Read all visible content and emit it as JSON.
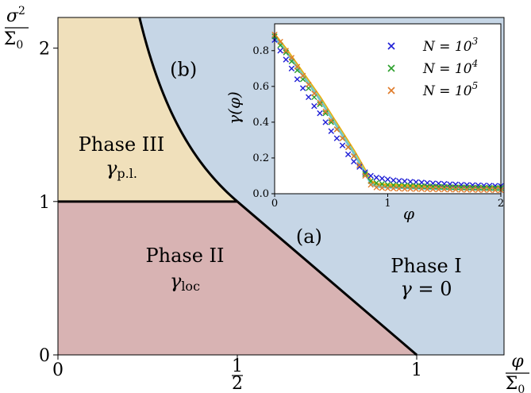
{
  "chart_data": [
    {
      "type": "area",
      "xlabel": {
        "numerator": "φ",
        "denominator": "Σ",
        "denominator_sub": "0"
      },
      "ylabel": {
        "numerator": "σ",
        "numerator_sup": "2",
        "denominator": "Σ",
        "denominator_sub": "0"
      },
      "xlim": [
        0,
        1.0
      ],
      "ylim": [
        0,
        2.2
      ],
      "xticks": [
        {
          "value": 0,
          "label": "0"
        },
        {
          "value": 0.5,
          "numerator": "1",
          "denominator": "2"
        },
        {
          "value": 1,
          "label": "1"
        }
      ],
      "yticks": [
        {
          "value": 0,
          "label": "0"
        },
        {
          "value": 1,
          "label": "1"
        },
        {
          "value": 2,
          "label": "2"
        }
      ],
      "x_max": 1.25,
      "regions": [
        {
          "name": "Phase I",
          "formula_main": "γ",
          "formula_rest": " = 0",
          "color": "#c6d6e6"
        },
        {
          "name": "Phase II",
          "formula_main": "γ",
          "formula_sub": "loc",
          "color": "#d8b3b3"
        },
        {
          "name": "Phase III",
          "formula_main": "γ",
          "formula_sub": "p.l.",
          "color": "#f0e0bb"
        }
      ],
      "boundaries": [
        {
          "id": "phase-ii-iii",
          "points": [
            [
              0,
              1
            ],
            [
              0.5,
              1
            ]
          ]
        },
        {
          "id": "phase-i-ii",
          "points": [
            [
              0.5,
              1
            ],
            [
              1,
              0
            ]
          ]
        },
        {
          "id": "phase-iii-i",
          "formula": "y = 1/(2x)",
          "x_range": [
            0.227,
            0.5
          ]
        }
      ],
      "annotations": [
        {
          "label": "(a)",
          "x": 0.7,
          "y": 0.73
        },
        {
          "label": "(b)",
          "x": 0.35,
          "y": 1.82
        }
      ]
    },
    {
      "type": "line",
      "xlabel": "φ",
      "ylabel": "γ(φ)",
      "xlim": [
        0,
        2
      ],
      "ylim": [
        0,
        0.95
      ],
      "xticks": [
        0,
        1,
        2
      ],
      "yticks": [
        0.0,
        0.2,
        0.4,
        0.6,
        0.8
      ],
      "ytick_labels": [
        "0.0",
        "0.2",
        "0.4",
        "0.6",
        "0.8"
      ],
      "legend_position": "top-right",
      "theory_curve": {
        "colors": [
          "#f2a900",
          "#8fd3a0",
          "#6ec0cf"
        ],
        "x": [
          0,
          0.1,
          0.2,
          0.3,
          0.4,
          0.5,
          0.6,
          0.7,
          0.8,
          0.85,
          0.9,
          1.0,
          1.2,
          1.4,
          1.6,
          1.8,
          2.0
        ],
        "y": [
          0.88,
          0.8,
          0.71,
          0.62,
          0.53,
          0.43,
          0.33,
          0.23,
          0.12,
          0.06,
          0.045,
          0.04,
          0.036,
          0.033,
          0.031,
          0.029,
          0.027
        ]
      },
      "series": [
        {
          "name_base": "N = 10",
          "name_exp": "3",
          "color": "#1f1fd6",
          "x": [
            0.0,
            0.05,
            0.1,
            0.15,
            0.2,
            0.25,
            0.3,
            0.35,
            0.4,
            0.45,
            0.5,
            0.55,
            0.6,
            0.65,
            0.7,
            0.75,
            0.8,
            0.85,
            0.9,
            0.95,
            1.0,
            1.05,
            1.1,
            1.15,
            1.2,
            1.25,
            1.3,
            1.35,
            1.4,
            1.45,
            1.5,
            1.55,
            1.6,
            1.65,
            1.7,
            1.75,
            1.8,
            1.85,
            1.9,
            1.95,
            2.0
          ],
          "y": [
            0.86,
            0.8,
            0.75,
            0.7,
            0.64,
            0.59,
            0.54,
            0.49,
            0.45,
            0.4,
            0.35,
            0.31,
            0.27,
            0.22,
            0.18,
            0.15,
            0.12,
            0.1,
            0.09,
            0.085,
            0.08,
            0.075,
            0.072,
            0.07,
            0.067,
            0.065,
            0.063,
            0.06,
            0.058,
            0.057,
            0.055,
            0.053,
            0.052,
            0.05,
            0.049,
            0.048,
            0.047,
            0.046,
            0.045,
            0.044,
            0.043
          ]
        },
        {
          "name_base": "N = 10",
          "name_exp": "4",
          "color": "#2ca02c",
          "x": [
            0.0,
            0.05,
            0.1,
            0.15,
            0.2,
            0.25,
            0.3,
            0.35,
            0.4,
            0.45,
            0.5,
            0.55,
            0.6,
            0.65,
            0.7,
            0.75,
            0.8,
            0.85,
            0.9,
            0.95,
            1.0,
            1.05,
            1.1,
            1.15,
            1.2,
            1.25,
            1.3,
            1.35,
            1.4,
            1.45,
            1.5,
            1.55,
            1.6,
            1.65,
            1.7,
            1.75,
            1.8,
            1.85,
            1.9,
            1.95,
            2.0
          ],
          "y": [
            0.88,
            0.83,
            0.79,
            0.74,
            0.69,
            0.64,
            0.59,
            0.54,
            0.5,
            0.45,
            0.4,
            0.36,
            0.31,
            0.26,
            0.21,
            0.16,
            0.11,
            0.07,
            0.06,
            0.055,
            0.05,
            0.048,
            0.046,
            0.045,
            0.044,
            0.043,
            0.042,
            0.041,
            0.04,
            0.039,
            0.038,
            0.037,
            0.036,
            0.036,
            0.035,
            0.034,
            0.034,
            0.033,
            0.033,
            0.032,
            0.032
          ]
        },
        {
          "name_base": "N = 10",
          "name_exp": "5",
          "color": "#e07b2a",
          "x": [
            0.0,
            0.05,
            0.1,
            0.15,
            0.2,
            0.25,
            0.3,
            0.35,
            0.4,
            0.45,
            0.5,
            0.55,
            0.6,
            0.65,
            0.7,
            0.75,
            0.8,
            0.85,
            0.9,
            0.95,
            1.0,
            1.05,
            1.1,
            1.15,
            1.2,
            1.25,
            1.3,
            1.35,
            1.4,
            1.45,
            1.5,
            1.55,
            1.6,
            1.65,
            1.7,
            1.75,
            1.8,
            1.85,
            1.9,
            1.95,
            2.0
          ],
          "y": [
            0.89,
            0.85,
            0.8,
            0.76,
            0.71,
            0.66,
            0.61,
            0.56,
            0.51,
            0.46,
            0.41,
            0.36,
            0.31,
            0.26,
            0.21,
            0.16,
            0.1,
            0.05,
            0.035,
            0.032,
            0.03,
            0.029,
            0.028,
            0.027,
            0.027,
            0.026,
            0.026,
            0.025,
            0.025,
            0.024,
            0.024,
            0.023,
            0.023,
            0.022,
            0.022,
            0.022,
            0.021,
            0.021,
            0.021,
            0.02,
            0.02
          ]
        }
      ]
    }
  ]
}
